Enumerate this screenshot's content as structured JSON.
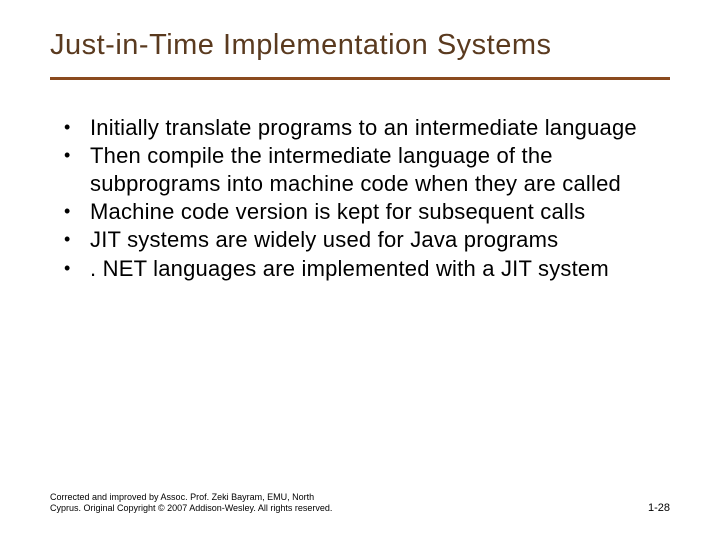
{
  "slide": {
    "title": "Just-in-Time Implementation Systems",
    "title_color": "#5a3a1f",
    "title_fontsize": 29,
    "divider_color": "#8a4a1e",
    "divider_thickness": 3,
    "background_color": "#ffffff",
    "body_text_color": "#000000",
    "body_fontsize": 22,
    "bullets": [
      "Initially translate programs to an intermediate language",
      "Then compile the intermediate language of the subprograms into machine code when they are called",
      "Machine code version is kept for subsequent calls",
      "JIT systems are widely used for Java programs",
      ". NET languages are implemented with a JIT system"
    ],
    "footer_left_line1": "Corrected and improved by Assoc. Prof. Zeki Bayram, EMU, North",
    "footer_left_line2": "Cyprus. Original Copyright © 2007 Addison-Wesley. All rights reserved.",
    "footer_right": "1-28",
    "footer_fontsize": 9,
    "pagenum_fontsize": 11
  }
}
